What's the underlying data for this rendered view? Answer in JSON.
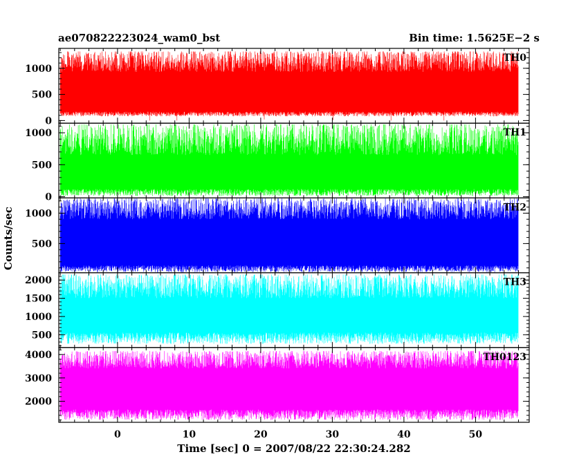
{
  "title_left": "ae070822223024_wam0_bst",
  "title_right": "Bin time: 1.5625E−2 s",
  "xlabel": "Time [sec] 0 = 2007/08/22 22:30:24.282",
  "ylabel": "Counts/sec",
  "chart_data": {
    "type": "line",
    "x_range": [
      -8,
      56
    ],
    "xlim": [
      -8.2,
      57.5
    ],
    "x_tick_labels": [
      0,
      10,
      20,
      30,
      40,
      50
    ],
    "x_minor_step": 2,
    "bin_time_s": 0.015625,
    "panels": [
      {
        "label": "TH0",
        "color": "#ff0000",
        "ylim": [
          -50,
          1380
        ],
        "y_tick_labels": [
          0,
          500,
          1000
        ],
        "y_minor_step": 100,
        "band": {
          "low": [
            80,
            170
          ],
          "high": [
            930,
            1320
          ]
        },
        "dips": [
          [
            4.5,
            0
          ],
          [
            8.3,
            0
          ],
          [
            20.5,
            20
          ],
          [
            30.1,
            10
          ],
          [
            38.2,
            0
          ],
          [
            45.6,
            0
          ]
        ]
      },
      {
        "label": "TH1",
        "color": "#00ff00",
        "ylim": [
          -20,
          1150
        ],
        "y_tick_labels": [
          0,
          500,
          1000
        ],
        "y_minor_step": 100,
        "band": {
          "low": [
            10,
            120
          ],
          "high": [
            650,
            1130
          ]
        },
        "dips": []
      },
      {
        "label": "TH2",
        "color": "#0000ff",
        "ylim": [
          20,
          1250
        ],
        "y_tick_labels": [
          500,
          1000
        ],
        "y_minor_step": 100,
        "band": {
          "low": [
            30,
            140
          ],
          "high": [
            900,
            1240
          ]
        },
        "dips": []
      },
      {
        "label": "TH3",
        "color": "#00ffff",
        "ylim": [
          150,
          2200
        ],
        "y_tick_labels": [
          500,
          1000,
          1500,
          2000
        ],
        "y_minor_step": 100,
        "band": {
          "low": [
            250,
            560
          ],
          "high": [
            1500,
            2150
          ]
        },
        "dips": []
      },
      {
        "label": "TH0123",
        "color": "#ff00ff",
        "ylim": [
          1100,
          4300
        ],
        "y_tick_labels": [
          2000,
          3000,
          4000
        ],
        "y_minor_step": 200,
        "band": {
          "low": [
            1200,
            1650
          ],
          "high": [
            3400,
            4150
          ]
        },
        "dips": []
      }
    ]
  }
}
